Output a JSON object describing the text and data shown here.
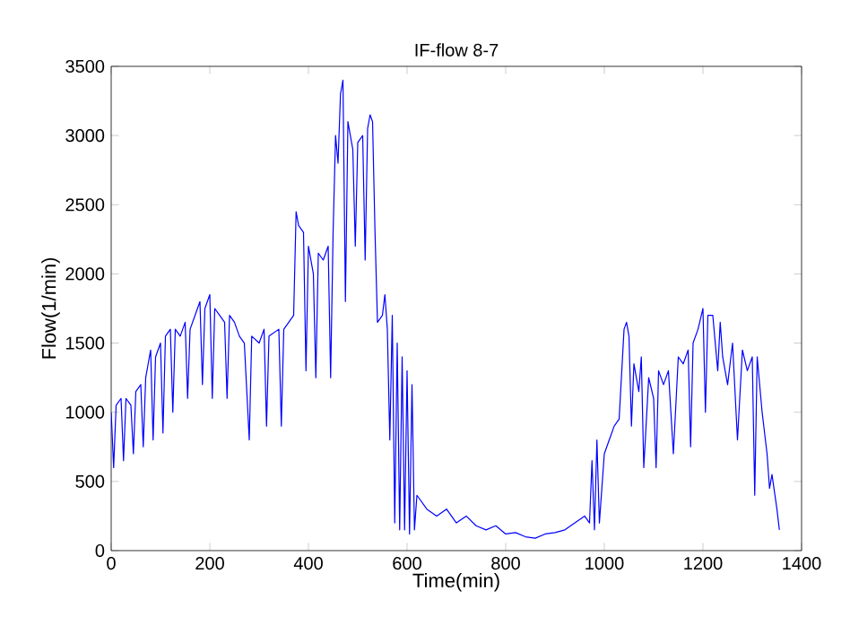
{
  "chart_data": {
    "type": "line",
    "title": "IF-flow 8-7",
    "xlabel": "Time(min)",
    "ylabel": "Flow(1/min)",
    "xlim": [
      0,
      1400
    ],
    "ylim": [
      0,
      3500
    ],
    "xticks": [
      0,
      200,
      400,
      600,
      800,
      1000,
      1200,
      1400
    ],
    "yticks": [
      0,
      500,
      1000,
      1500,
      2000,
      2500,
      3000,
      3500
    ],
    "grid": false,
    "marker": "none",
    "line_style": "solid",
    "series": [
      {
        "color": "#0000ff",
        "x": [
          0,
          5,
          10,
          20,
          25,
          30,
          40,
          45,
          50,
          60,
          65,
          70,
          80,
          85,
          90,
          100,
          105,
          110,
          120,
          125,
          130,
          140,
          150,
          155,
          160,
          170,
          180,
          185,
          190,
          200,
          205,
          210,
          220,
          230,
          235,
          240,
          250,
          260,
          270,
          280,
          285,
          300,
          310,
          315,
          320,
          340,
          345,
          350,
          360,
          370,
          375,
          380,
          390,
          395,
          400,
          410,
          415,
          420,
          430,
          440,
          445,
          450,
          455,
          460,
          465,
          470,
          475,
          480,
          490,
          495,
          500,
          510,
          515,
          520,
          525,
          530,
          535,
          540,
          550,
          555,
          560,
          565,
          570,
          575,
          580,
          585,
          590,
          595,
          600,
          605,
          610,
          615,
          620,
          640,
          660,
          680,
          700,
          720,
          740,
          760,
          780,
          800,
          820,
          840,
          860,
          880,
          900,
          920,
          940,
          960,
          970,
          975,
          980,
          985,
          990,
          1000,
          1010,
          1020,
          1030,
          1040,
          1045,
          1050,
          1055,
          1060,
          1070,
          1075,
          1080,
          1090,
          1100,
          1105,
          1110,
          1120,
          1130,
          1140,
          1150,
          1160,
          1170,
          1175,
          1180,
          1190,
          1200,
          1205,
          1210,
          1220,
          1230,
          1235,
          1240,
          1250,
          1260,
          1270,
          1280,
          1290,
          1300,
          1305,
          1310,
          1320,
          1330,
          1335,
          1340,
          1350,
          1355
        ],
        "values": [
          1000,
          600,
          1050,
          1100,
          650,
          1100,
          1050,
          700,
          1150,
          1200,
          750,
          1250,
          1450,
          800,
          1400,
          1500,
          850,
          1550,
          1600,
          1000,
          1600,
          1550,
          1650,
          1100,
          1600,
          1700,
          1800,
          1200,
          1750,
          1850,
          1100,
          1750,
          1700,
          1650,
          1100,
          1700,
          1650,
          1550,
          1500,
          800,
          1550,
          1500,
          1600,
          900,
          1550,
          1600,
          900,
          1600,
          1650,
          1700,
          2450,
          2350,
          2300,
          1300,
          2200,
          2000,
          1250,
          2150,
          2100,
          2200,
          1250,
          2300,
          3000,
          2800,
          3300,
          3400,
          1800,
          3100,
          2900,
          2200,
          2950,
          3000,
          2100,
          3050,
          3150,
          3100,
          2300,
          1650,
          1700,
          1850,
          1600,
          800,
          1700,
          200,
          1500,
          150,
          1400,
          150,
          1300,
          120,
          1200,
          150,
          400,
          300,
          250,
          300,
          200,
          250,
          180,
          150,
          180,
          120,
          130,
          100,
          90,
          120,
          130,
          150,
          200,
          250,
          200,
          650,
          150,
          800,
          200,
          700,
          800,
          900,
          950,
          1600,
          1650,
          1550,
          900,
          1350,
          1150,
          1400,
          600,
          1250,
          1100,
          600,
          1300,
          1200,
          1300,
          700,
          1400,
          1350,
          1450,
          750,
          1500,
          1600,
          1750,
          1000,
          1700,
          1700,
          1300,
          1650,
          1400,
          1200,
          1500,
          800,
          1450,
          1300,
          1400,
          400,
          1400,
          1000,
          700,
          450,
          550,
          300,
          150
        ]
      }
    ]
  }
}
